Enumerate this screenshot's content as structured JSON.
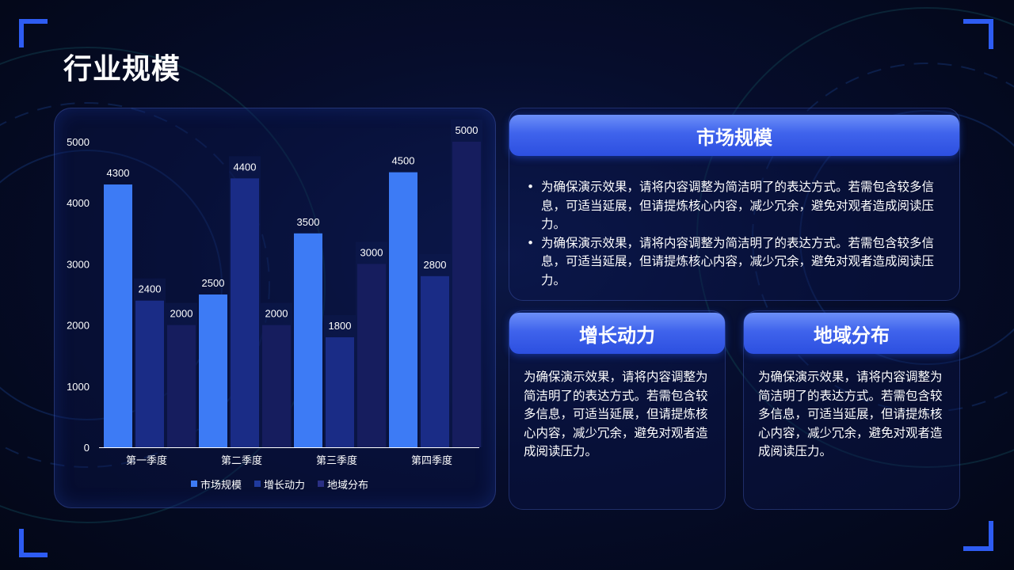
{
  "page": {
    "title": "行业规模"
  },
  "chart_data": {
    "type": "bar",
    "categories": [
      "第一季度",
      "第二季度",
      "第三季度",
      "第四季度"
    ],
    "series": [
      {
        "name": "市场规模",
        "values": [
          4300,
          2500,
          3500,
          4500
        ],
        "color": "#3d7bf5"
      },
      {
        "name": "增长动力",
        "values": [
          2400,
          4400,
          1800,
          2800
        ],
        "color": "#1a2c86"
      },
      {
        "name": "地域分布",
        "values": [
          2000,
          2000,
          3000,
          5000
        ],
        "color": "#161d5e"
      }
    ],
    "yticks": [
      "0",
      "1000",
      "2000",
      "3000",
      "4000",
      "5000"
    ],
    "ylim": [
      0,
      5000
    ],
    "grid": false,
    "legend": "bottom",
    "axis_color": "#ffffff",
    "label_color": "#ffffff"
  },
  "panels": {
    "market": {
      "title": "市场规模",
      "bullets": [
        "为确保演示效果，请将内容调整为简洁明了的表达方式。若需包含较多信息，可适当延展，但请提炼核心内容，减少冗余，避免对观者造成阅读压力。",
        "为确保演示效果，请将内容调整为简洁明了的表达方式。若需包含较多信息，可适当延展，但请提炼核心内容，减少冗余，避免对观者造成阅读压力。"
      ]
    },
    "growth": {
      "title": "增长动力",
      "text": "为确保演示效果，请将内容调整为简洁明了的表达方式。若需包含较多信息，可适当延展，但请提炼核心内容，减少冗余，避免对观者造成阅读压力。"
    },
    "region": {
      "title": "地域分布",
      "text": "为确保演示效果，请将内容调整为简洁明了的表达方式。若需包含较多信息，可适当延展，但请提炼核心内容，减少冗余，避免对观者造成阅读压力。"
    }
  },
  "theme": {
    "accent": "#2e5cf2",
    "background": "#060d2c"
  }
}
